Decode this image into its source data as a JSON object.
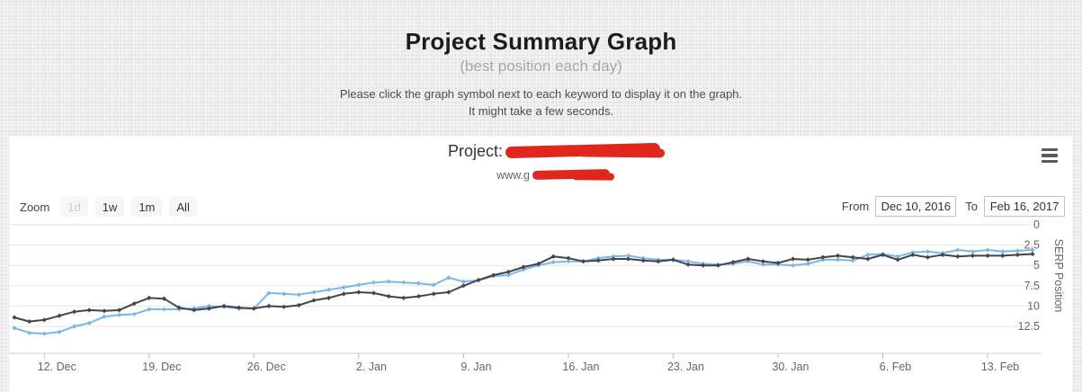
{
  "page": {
    "title": "Project Summary Graph",
    "subtitle": "(best position each day)",
    "instructions_line1": "Please click the graph symbol next to each keyword to display it on the graph.",
    "instructions_line2": "It might take a few seconds."
  },
  "chart_panel": {
    "title_prefix": "Project:",
    "subtitle_prefix": "www.g",
    "redaction_color": "#e0261d",
    "range_selector": {
      "zoom_label": "Zoom",
      "buttons": [
        {
          "label": "1d",
          "enabled": false
        },
        {
          "label": "1w",
          "enabled": true
        },
        {
          "label": "1m",
          "enabled": true
        },
        {
          "label": "All",
          "enabled": true
        }
      ],
      "from_label": "From",
      "from_value": "Dec 10, 2016",
      "to_label": "To",
      "to_value": "Feb 16, 2017"
    }
  },
  "chart_data": {
    "type": "line",
    "title": "Project: [redacted domain]",
    "subtitle": "www.g[redacted]",
    "x_start_date": "Dec 10, 2016",
    "x_end_date": "Feb 16, 2017",
    "x_tick_labels": [
      "12. Dec",
      "19. Dec",
      "26. Dec",
      "2. Jan",
      "9. Jan",
      "16. Jan",
      "23. Jan",
      "30. Jan",
      "6. Feb",
      "13. Feb"
    ],
    "x_tick_day_index": [
      2,
      9,
      16,
      23,
      30,
      37,
      44,
      51,
      58,
      65
    ],
    "x_total_days": 69,
    "y_axis": {
      "title": "SERP Position",
      "ticks": [
        0,
        2.5,
        5,
        7.5,
        10,
        12.5
      ],
      "min": 0,
      "max": 15.8,
      "reversed": true,
      "side": "right"
    },
    "grid": true,
    "legend": "none",
    "colors": {
      "grid": "#e6e6e6",
      "axis_line": "#d0d0d0",
      "tick_label": "#666666"
    },
    "series": [
      {
        "name": "series-1-light-blue",
        "color": "#7cb5ec",
        "values": [
          12.7,
          13.3,
          13.4,
          13.2,
          12.5,
          12.1,
          11.3,
          11.1,
          11.0,
          10.4,
          10.4,
          10.4,
          10.3,
          10.0,
          10.1,
          10.3,
          10.3,
          8.4,
          8.5,
          8.6,
          8.3,
          8.0,
          7.7,
          7.4,
          7.1,
          7.0,
          7.1,
          7.2,
          7.4,
          6.5,
          7.0,
          6.8,
          6.3,
          6.2,
          5.5,
          5.0,
          4.6,
          4.5,
          4.5,
          4.1,
          3.9,
          3.8,
          4.1,
          4.3,
          4.3,
          4.5,
          4.8,
          4.9,
          4.8,
          4.5,
          4.9,
          4.9,
          5.0,
          4.8,
          4.3,
          4.3,
          4.4,
          3.7,
          3.6,
          3.9,
          3.4,
          3.3,
          3.5,
          3.1,
          3.3,
          3.1,
          3.3,
          3.2,
          3.1
        ]
      },
      {
        "name": "series-2-dark",
        "color": "#434348",
        "values": [
          11.4,
          11.9,
          11.7,
          11.2,
          10.7,
          10.5,
          10.6,
          10.5,
          9.7,
          9.0,
          9.1,
          10.2,
          10.5,
          10.3,
          10.0,
          10.2,
          10.3,
          10.0,
          10.1,
          9.9,
          9.3,
          9.0,
          8.5,
          8.3,
          8.4,
          8.8,
          9.0,
          8.8,
          8.5,
          8.3,
          7.5,
          6.8,
          6.2,
          5.8,
          5.2,
          4.8,
          3.9,
          4.1,
          4.5,
          4.4,
          4.2,
          4.2,
          4.4,
          4.5,
          4.3,
          4.9,
          5.0,
          5.0,
          4.6,
          4.2,
          4.5,
          4.7,
          4.2,
          4.3,
          4.0,
          3.8,
          4.0,
          4.2,
          3.7,
          4.3,
          3.7,
          4.0,
          3.7,
          3.9,
          3.8,
          3.8,
          3.8,
          3.7,
          3.6
        ]
      }
    ]
  }
}
